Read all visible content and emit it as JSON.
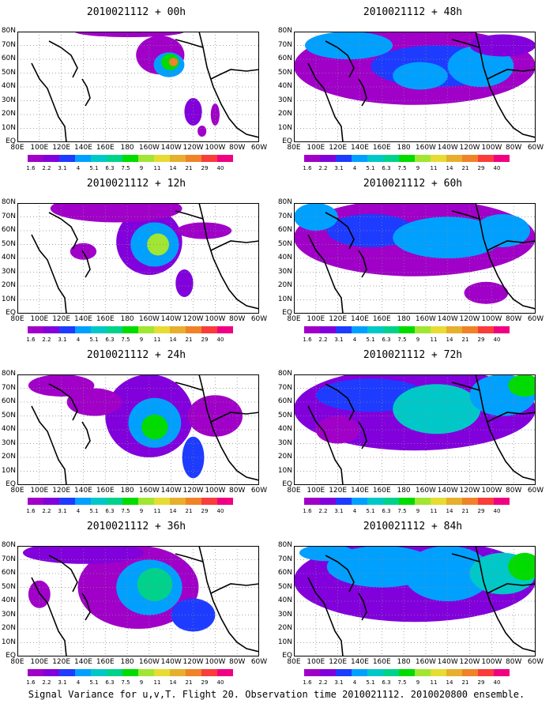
{
  "panels": [
    {
      "title": "2010021112 + 00h",
      "lead": 0
    },
    {
      "title": "2010021112 + 48h",
      "lead": 48
    },
    {
      "title": "2010021112 + 12h",
      "lead": 12
    },
    {
      "title": "2010021112 + 60h",
      "lead": 60
    },
    {
      "title": "2010021112 + 24h",
      "lead": 24
    },
    {
      "title": "2010021112 + 72h",
      "lead": 72
    },
    {
      "title": "2010021112 + 36h",
      "lead": 36
    },
    {
      "title": "2010021112 + 84h",
      "lead": 84
    }
  ],
  "axes": {
    "x_ticks": [
      "80E",
      "100E",
      "120E",
      "140E",
      "160E",
      "180",
      "160W",
      "140W",
      "120W",
      "100W",
      "80W",
      "60W"
    ],
    "y_ticks": [
      "EQ",
      "10N",
      "20N",
      "30N",
      "40N",
      "50N",
      "60N",
      "70N",
      "80N"
    ]
  },
  "colorbar": {
    "levels": [
      "1.6",
      "2.2",
      "3.1",
      "4",
      "5.1",
      "6.3",
      "7.5",
      "9",
      "11",
      "14",
      "21",
      "29",
      "40"
    ],
    "colors": [
      "#a000c8",
      "#8200dc",
      "#1e3cff",
      "#00a0ff",
      "#00c8c8",
      "#00d28c",
      "#00dc00",
      "#a0e632",
      "#e6dc32",
      "#e6af2d",
      "#f08228",
      "#fa3c3c",
      "#f00082"
    ]
  },
  "caption": "Signal Variance for u,v,T. Flight 20. Observation time 2010021112. 2010020800 ensemble."
}
